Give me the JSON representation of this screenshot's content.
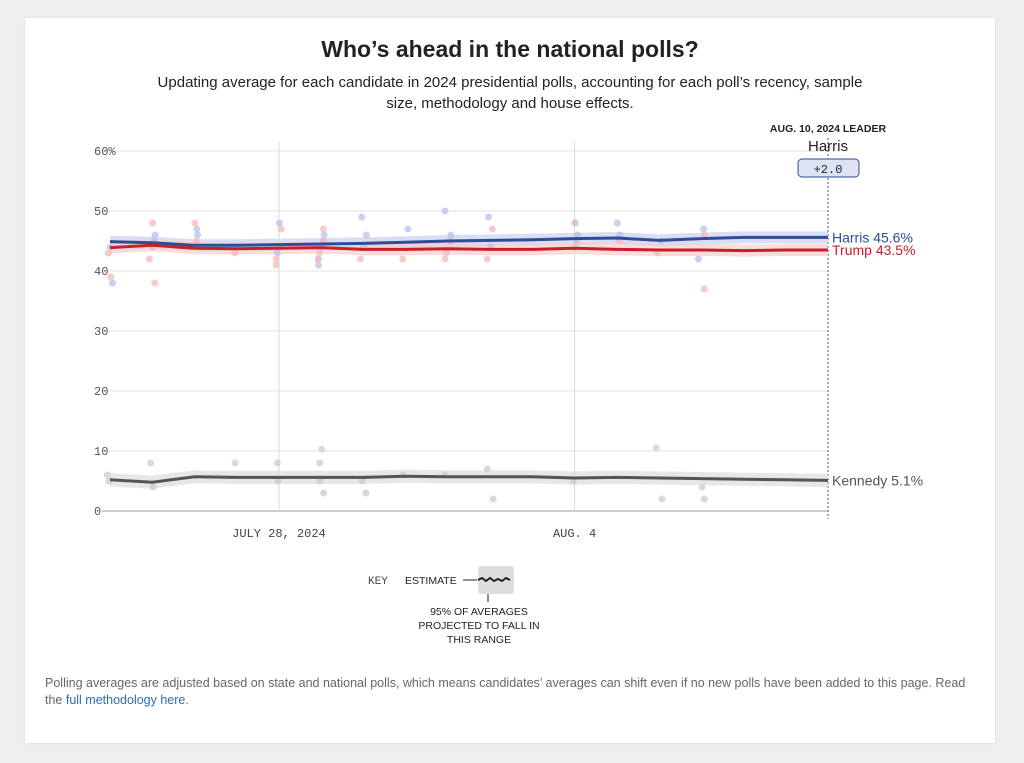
{
  "header": {
    "title": "Who’s ahead in the national polls?",
    "subtitle": "Updating average for each candidate in 2024 presidential polls, accounting for each poll’s recency, sample size, methodology and house effects."
  },
  "leader": {
    "date_label": "AUG. 10, 2024 LEADER",
    "name": "Harris",
    "margin": "+2.0",
    "badge_fill": "#dde3f5",
    "badge_stroke": "#2f4b9a"
  },
  "key": {
    "label": "KEY",
    "estimate": "ESTIMATE",
    "range_lines": [
      "95% OF AVERAGES",
      "PROJECTED TO FALL IN",
      "THIS RANGE"
    ]
  },
  "footer": {
    "text": "Polling averages are adjusted based on state and national polls, which means candidates’ averages can shift even if no new polls have been added to this page. Read the ",
    "link_text": "full methodology here",
    "after": "."
  },
  "chart_data": {
    "type": "line",
    "title": "Who’s ahead in the national polls?",
    "xlabel": "",
    "ylabel": "",
    "x_range": [
      "2024-07-24",
      "2024-08-10"
    ],
    "ylim": [
      0,
      60
    ],
    "yticks": [
      0,
      10,
      20,
      30,
      40,
      50,
      60
    ],
    "ytick_labels": [
      "0",
      "10",
      "20",
      "30",
      "40",
      "50",
      "60%"
    ],
    "xticks": [
      {
        "day": 4,
        "label": "JULY 28, 2024"
      },
      {
        "day": 11,
        "label": "AUG. 4"
      }
    ],
    "grid": true,
    "legend": "end-of-line labels (right)",
    "series": [
      {
        "name": "Harris",
        "end_label": "Harris 45.6%",
        "color": "#2f4b9a",
        "dot_color": "#b8c0e8",
        "band_color": "#c9d0ec",
        "days": [
          0,
          1,
          2,
          3,
          4,
          5,
          6,
          7,
          8,
          9,
          10,
          11,
          12,
          13,
          14,
          15,
          16,
          17
        ],
        "values": [
          44.9,
          44.7,
          44.3,
          44.3,
          44.4,
          44.5,
          44.6,
          44.8,
          45.0,
          45.1,
          45.2,
          45.4,
          45.5,
          45.1,
          45.4,
          45.6,
          45.6,
          45.6
        ],
        "band": 1.0,
        "polls": [
          [
            0,
            44
          ],
          [
            0,
            38
          ],
          [
            1,
            46
          ],
          [
            1,
            45
          ],
          [
            1,
            44
          ],
          [
            2,
            47
          ],
          [
            2,
            46
          ],
          [
            3,
            44
          ],
          [
            4,
            48
          ],
          [
            4,
            43
          ],
          [
            4,
            44
          ],
          [
            5,
            46
          ],
          [
            5,
            45
          ],
          [
            5,
            44
          ],
          [
            5,
            42
          ],
          [
            5,
            41
          ],
          [
            6,
            49
          ],
          [
            6,
            46
          ],
          [
            6,
            44
          ],
          [
            7,
            47
          ],
          [
            8,
            50
          ],
          [
            8,
            46
          ],
          [
            8,
            45
          ],
          [
            9,
            49
          ],
          [
            9,
            44
          ],
          [
            11,
            48
          ],
          [
            11,
            46
          ],
          [
            11,
            45
          ],
          [
            12,
            48
          ],
          [
            12,
            46
          ],
          [
            13,
            45
          ],
          [
            14,
            47
          ],
          [
            14,
            42
          ]
        ]
      },
      {
        "name": "Trump",
        "end_label": "Trump 43.5%",
        "color": "#c8202a",
        "dot_color": "#f5b8b8",
        "band_color": "#f5cfcf",
        "days": [
          0,
          1,
          2,
          3,
          4,
          5,
          6,
          7,
          8,
          9,
          10,
          11,
          12,
          13,
          14,
          15,
          16,
          17
        ],
        "values": [
          43.9,
          44.3,
          43.8,
          43.7,
          43.8,
          43.9,
          43.6,
          43.6,
          43.7,
          43.6,
          43.6,
          43.8,
          43.6,
          43.5,
          43.5,
          43.4,
          43.5,
          43.5
        ],
        "band": 1.0,
        "polls": [
          [
            0,
            43
          ],
          [
            0,
            39
          ],
          [
            1,
            48
          ],
          [
            1,
            44
          ],
          [
            1,
            42
          ],
          [
            1,
            38
          ],
          [
            2,
            48
          ],
          [
            2,
            45
          ],
          [
            3,
            43
          ],
          [
            4,
            47
          ],
          [
            4,
            42
          ],
          [
            4,
            41
          ],
          [
            5,
            47
          ],
          [
            5,
            45
          ],
          [
            5,
            43
          ],
          [
            5,
            42
          ],
          [
            6,
            44
          ],
          [
            6,
            42
          ],
          [
            7,
            42
          ],
          [
            8,
            45
          ],
          [
            8,
            43
          ],
          [
            8,
            42
          ],
          [
            9,
            47
          ],
          [
            9,
            42
          ],
          [
            11,
            48
          ],
          [
            11,
            44
          ],
          [
            12,
            45
          ],
          [
            13,
            43
          ],
          [
            14,
            46
          ],
          [
            14,
            37
          ]
        ]
      },
      {
        "name": "Kennedy",
        "end_label": "Kennedy 5.1%",
        "color": "#555555",
        "dot_color": "#cccccc",
        "band_color": "#dddddd",
        "days": [
          0,
          1,
          2,
          3,
          4,
          5,
          6,
          7,
          8,
          9,
          10,
          11,
          12,
          13,
          14,
          15,
          16,
          17
        ],
        "values": [
          5.2,
          4.8,
          5.7,
          5.6,
          5.6,
          5.6,
          5.6,
          5.8,
          5.7,
          5.7,
          5.7,
          5.5,
          5.6,
          5.5,
          5.4,
          5.3,
          5.2,
          5.1
        ],
        "band": 1.1,
        "polls": [
          [
            0,
            6
          ],
          [
            0,
            5
          ],
          [
            1,
            8
          ],
          [
            1,
            4
          ],
          [
            3,
            8
          ],
          [
            4,
            8
          ],
          [
            4,
            5
          ],
          [
            5,
            10.3
          ],
          [
            5,
            8
          ],
          [
            5,
            5
          ],
          [
            5,
            3
          ],
          [
            6,
            5
          ],
          [
            6,
            3
          ],
          [
            7,
            6
          ],
          [
            8,
            6
          ],
          [
            9,
            7
          ],
          [
            9,
            2
          ],
          [
            11,
            5
          ],
          [
            13,
            10.5
          ],
          [
            13,
            2
          ],
          [
            14,
            4
          ],
          [
            14,
            2
          ]
        ]
      }
    ]
  }
}
